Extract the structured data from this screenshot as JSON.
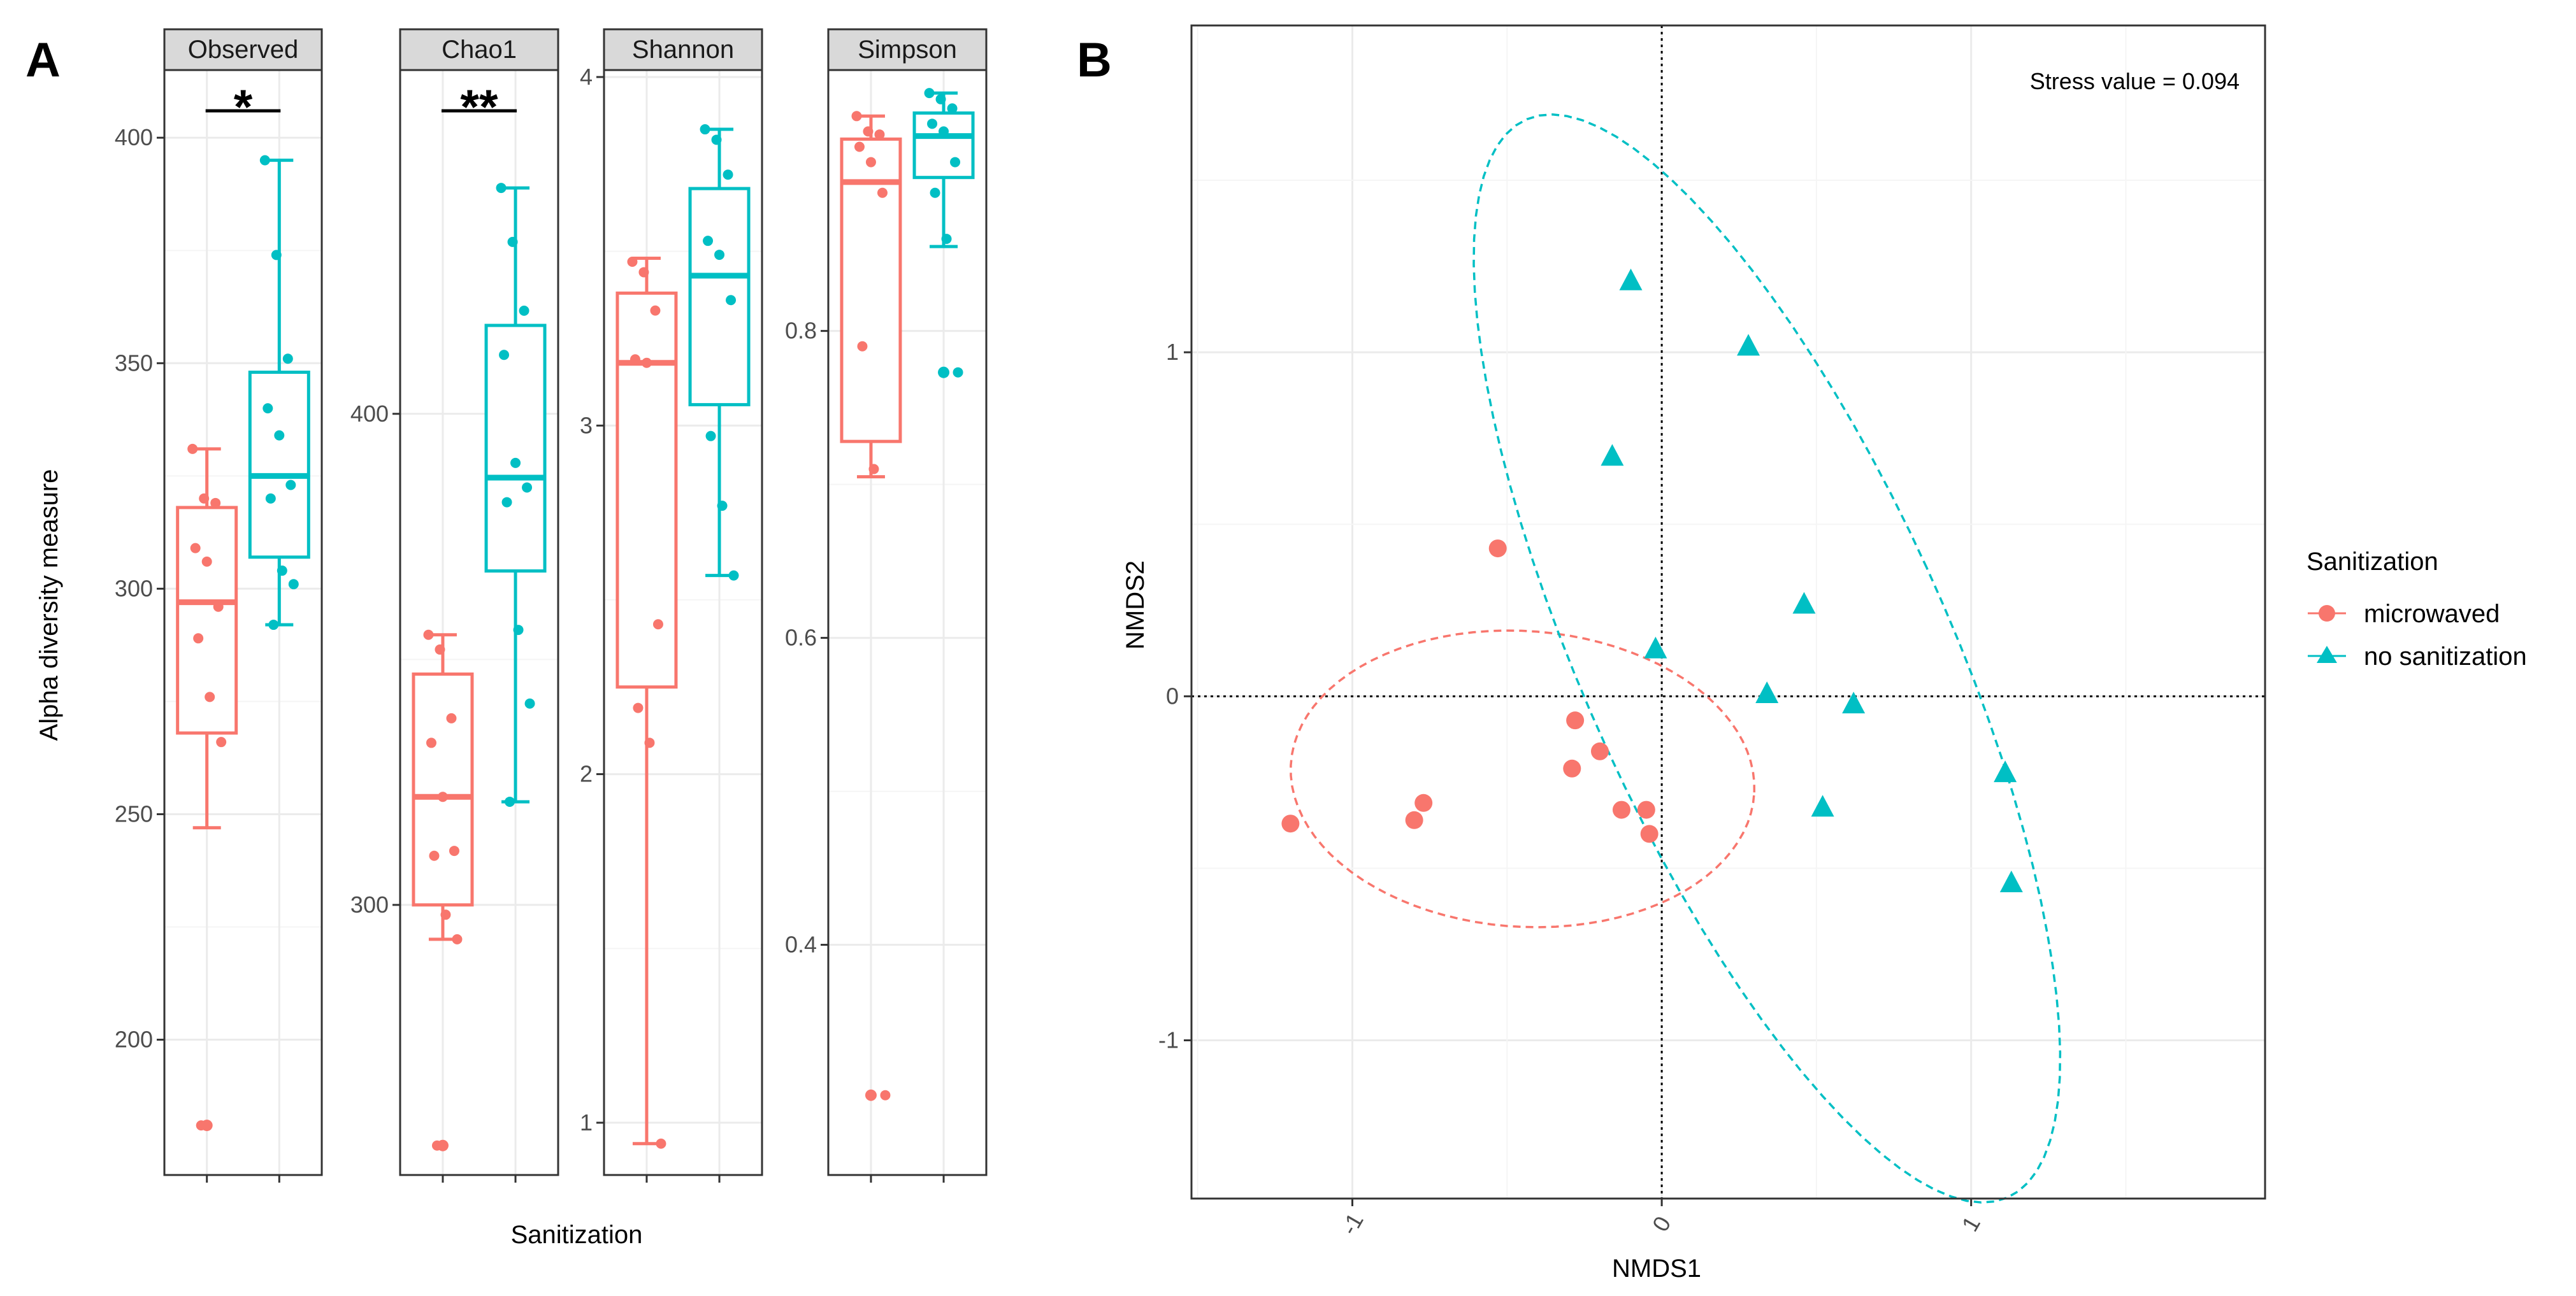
{
  "colors": {
    "microwaved": "#F8766D",
    "no_sanitization": "#00BFC4",
    "strip_bg": "#D9D9D9",
    "grid": "#EBEBEB",
    "panel_border": "#333333"
  },
  "chart_data": [
    {
      "panel_label": "A",
      "type": "box",
      "ylabel": "Alpha diversity measure",
      "xlabel": "Sanitization",
      "groups": [
        "microwaved",
        "no sanitization"
      ],
      "facets": [
        {
          "name": "Observed",
          "ylim": [
            170,
            415
          ],
          "yticks": [
            200,
            250,
            300,
            350,
            400
          ],
          "significance": "*",
          "boxes": [
            {
              "group": "microwaved",
              "min": 247,
              "q1": 268,
              "median": 297,
              "q3": 318,
              "max": 331,
              "outliers": [
                181
              ],
              "points": [
                331,
                320,
                319,
                309,
                306,
                296,
                289,
                276,
                266,
                181
              ]
            },
            {
              "group": "no sanitization",
              "min": 292,
              "q1": 307,
              "median": 325,
              "q3": 348,
              "max": 395,
              "outliers": [],
              "points": [
                395,
                374,
                351,
                340,
                334,
                323,
                320,
                304,
                301,
                292
              ]
            }
          ]
        },
        {
          "name": "Chao1",
          "ylim": [
            245,
            470
          ],
          "yticks": [
            300,
            400
          ],
          "significance": "**",
          "boxes": [
            {
              "group": "microwaved",
              "min": 293,
              "q1": 300,
              "median": 322,
              "q3": 347,
              "max": 355,
              "outliers": [
                251
              ],
              "points": [
                355,
                352,
                338,
                333,
                322,
                311,
                310,
                298,
                293,
                251
              ]
            },
            {
              "group": "no sanitization",
              "min": 321,
              "q1": 368,
              "median": 387,
              "q3": 418,
              "max": 446,
              "outliers": [],
              "points": [
                446,
                435,
                421,
                412,
                390,
                385,
                382,
                356,
                341,
                321
              ]
            }
          ]
        },
        {
          "name": "Shannon",
          "ylim": [
            0.85,
            4.02
          ],
          "yticks": [
            1,
            2,
            3,
            4
          ],
          "significance": "",
          "boxes": [
            {
              "group": "microwaved",
              "min": 0.94,
              "q1": 2.25,
              "median": 3.18,
              "q3": 3.38,
              "max": 3.48,
              "outliers": [],
              "points": [
                3.47,
                3.44,
                3.33,
                3.19,
                3.18,
                2.43,
                2.19,
                2.09,
                0.94
              ]
            },
            {
              "group": "no sanitization",
              "min": 2.57,
              "q1": 3.06,
              "median": 3.43,
              "q3": 3.68,
              "max": 3.85,
              "outliers": [],
              "points": [
                3.85,
                3.82,
                3.72,
                3.53,
                3.49,
                3.36,
                2.97,
                2.77,
                2.57
              ]
            }
          ]
        },
        {
          "name": "Simpson",
          "ylim": [
            0.25,
            0.97
          ],
          "yticks": [
            0.4,
            0.6,
            0.8
          ],
          "significance": "",
          "boxes": [
            {
              "group": "microwaved",
              "min": 0.705,
              "q1": 0.728,
              "median": 0.897,
              "q3": 0.925,
              "max": 0.94,
              "outliers": [
                0.302
              ],
              "points": [
                0.94,
                0.93,
                0.928,
                0.92,
                0.91,
                0.89,
                0.79,
                0.71,
                0.302
              ]
            },
            {
              "group": "no sanitization",
              "min": 0.855,
              "q1": 0.9,
              "median": 0.927,
              "q3": 0.942,
              "max": 0.955,
              "outliers": [
                0.773
              ],
              "points": [
                0.955,
                0.951,
                0.945,
                0.935,
                0.93,
                0.91,
                0.89,
                0.86,
                0.773
              ]
            }
          ]
        }
      ]
    },
    {
      "panel_label": "B",
      "type": "scatter",
      "xlabel": "NMDS1",
      "ylabel": "NMDS2",
      "xlim": [
        -1.52,
        1.95
      ],
      "ylim": [
        -1.46,
        1.95
      ],
      "xticks": [
        -1,
        0,
        1
      ],
      "yticks": [
        -1,
        0,
        1
      ],
      "annotation": "Stress value = 0.094",
      "legend_title": "Sanitization",
      "series": [
        {
          "name": "microwaved",
          "shape": "circle",
          "points": [
            [
              -0.53,
              0.43
            ],
            [
              -0.28,
              -0.07
            ],
            [
              -0.2,
              -0.16
            ],
            [
              -0.29,
              -0.21
            ],
            [
              -0.13,
              -0.33
            ],
            [
              -0.05,
              -0.33
            ],
            [
              -0.04,
              -0.4
            ],
            [
              -0.77,
              -0.31
            ],
            [
              -0.8,
              -0.36
            ],
            [
              -1.2,
              -0.37
            ]
          ],
          "ellipse": {
            "cx": -0.45,
            "cy": -0.24,
            "rx": 0.75,
            "ry": 0.43,
            "angle_deg": -3
          }
        },
        {
          "name": "no sanitization",
          "shape": "triangle",
          "points": [
            [
              -0.1,
              1.21
            ],
            [
              0.28,
              1.02
            ],
            [
              -0.16,
              0.7
            ],
            [
              0.46,
              0.27
            ],
            [
              -0.02,
              0.14
            ],
            [
              0.34,
              0.01
            ],
            [
              0.62,
              -0.02
            ],
            [
              1.11,
              -0.22
            ],
            [
              0.52,
              -0.32
            ],
            [
              1.13,
              -0.54
            ]
          ],
          "ellipse": {
            "cx": 0.34,
            "cy": 0.11,
            "rx": 0.58,
            "ry": 1.75,
            "angle_deg": 27
          }
        }
      ]
    }
  ]
}
